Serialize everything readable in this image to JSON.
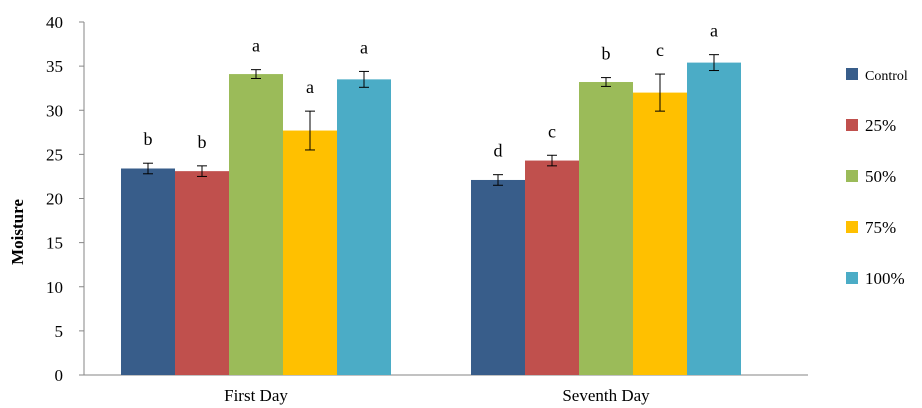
{
  "chart_data": {
    "type": "bar",
    "title": "",
    "xlabel": "",
    "ylabel": "Moisture",
    "ylim": [
      0,
      40
    ],
    "yticks": [
      0,
      5,
      10,
      15,
      20,
      25,
      30,
      35,
      40
    ],
    "grid": false,
    "legend_position": "right",
    "categories": [
      "First Day",
      "Seventh Day"
    ],
    "series": [
      {
        "name": "Control",
        "color": "#385d8a",
        "values": [
          23.4,
          22.1
        ],
        "errors": [
          0.6,
          0.6
        ],
        "letters": [
          "b",
          "d"
        ]
      },
      {
        "name": "25%",
        "color": "#c0504d",
        "values": [
          23.1,
          24.3
        ],
        "errors": [
          0.6,
          0.6
        ],
        "letters": [
          "b",
          "c"
        ]
      },
      {
        "name": "50%",
        "color": "#9bbb59",
        "values": [
          34.1,
          33.2
        ],
        "errors": [
          0.5,
          0.5
        ],
        "letters": [
          "a",
          "b"
        ]
      },
      {
        "name": "75%",
        "color": "#ffc000",
        "values": [
          27.7,
          32.0
        ],
        "errors": [
          2.2,
          2.1
        ],
        "letters": [
          "a",
          "c"
        ]
      },
      {
        "name": "100%",
        "color": "#4bacc6",
        "values": [
          33.5,
          35.4
        ],
        "errors": [
          0.9,
          0.9
        ],
        "letters": [
          "a",
          "a"
        ]
      }
    ]
  }
}
